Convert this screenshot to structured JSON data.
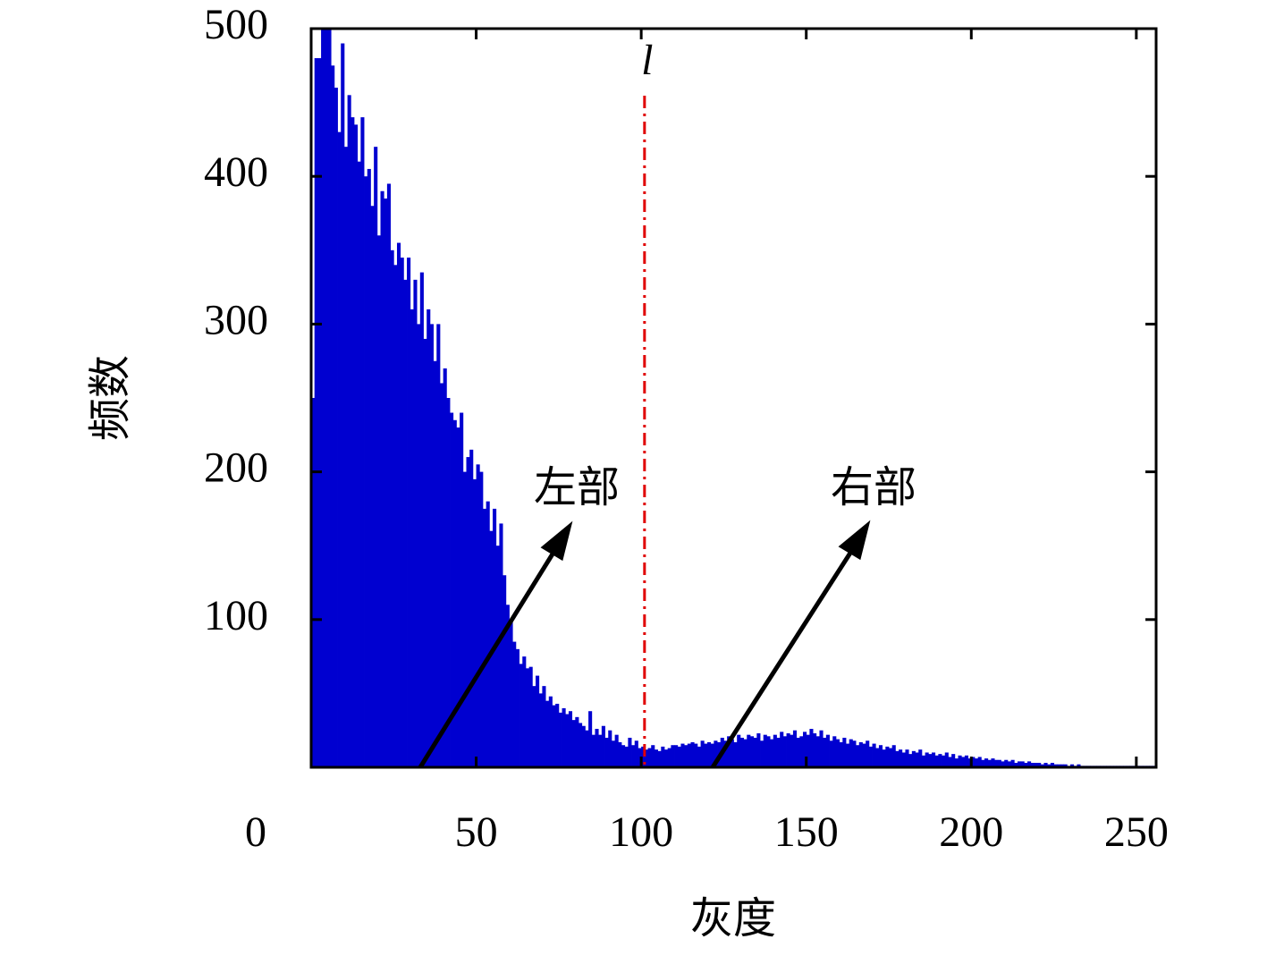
{
  "chart_data": {
    "type": "histogram",
    "xlabel": "灰度",
    "ylabel": "频数",
    "color": "#0000d0",
    "bins": [
      0,
      1,
      2,
      3,
      4,
      5,
      6,
      7,
      8,
      9,
      10,
      11,
      12,
      13,
      14,
      15,
      16,
      17,
      18,
      19,
      20,
      21,
      22,
      23,
      24,
      25,
      26,
      27,
      28,
      29,
      30,
      31,
      32,
      33,
      34,
      35,
      36,
      37,
      38,
      39,
      40,
      41,
      42,
      43,
      44,
      45,
      46,
      47,
      48,
      49,
      50,
      51,
      52,
      53,
      54,
      55,
      56,
      57,
      58,
      59,
      60,
      61,
      62,
      63,
      64,
      65,
      66,
      67,
      68,
      69,
      70,
      71,
      72,
      73,
      74,
      75,
      76,
      77,
      78,
      79,
      80,
      81,
      82,
      83,
      84,
      85,
      86,
      87,
      88,
      89,
      90,
      91,
      92,
      93,
      94,
      95,
      96,
      97,
      98,
      99,
      100,
      101,
      102,
      103,
      104,
      105,
      106,
      107,
      108,
      109,
      110,
      111,
      112,
      113,
      114,
      115,
      116,
      117,
      118,
      119,
      120,
      121,
      122,
      123,
      124,
      125,
      126,
      127,
      128,
      129,
      130,
      131,
      132,
      133,
      134,
      135,
      136,
      137,
      138,
      139,
      140,
      141,
      142,
      143,
      144,
      145,
      146,
      147,
      148,
      149,
      150,
      151,
      152,
      153,
      154,
      155,
      156,
      157,
      158,
      159,
      160,
      161,
      162,
      163,
      164,
      165,
      166,
      167,
      168,
      169,
      170,
      171,
      172,
      173,
      174,
      175,
      176,
      177,
      178,
      179,
      180,
      181,
      182,
      183,
      184,
      185,
      186,
      187,
      188,
      189,
      190,
      191,
      192,
      193,
      194,
      195,
      196,
      197,
      198,
      199,
      200,
      201,
      202,
      203,
      204,
      205,
      206,
      207,
      208,
      209,
      210,
      211,
      212,
      213,
      214,
      215,
      216,
      217,
      218,
      219,
      220,
      221,
      222,
      223,
      224,
      225,
      226,
      227,
      228,
      229,
      230,
      231,
      232,
      233,
      234,
      235,
      236,
      237,
      238,
      239,
      240,
      241,
      242,
      243,
      244,
      245,
      246,
      247,
      248,
      249,
      250,
      251,
      252,
      253,
      254,
      255,
      256
    ],
    "values": [
      250,
      480,
      480,
      500,
      500,
      500,
      475,
      460,
      430,
      490,
      420,
      455,
      440,
      435,
      410,
      440,
      400,
      405,
      380,
      420,
      360,
      390,
      385,
      395,
      350,
      340,
      355,
      345,
      330,
      345,
      310,
      330,
      300,
      335,
      290,
      310,
      300,
      275,
      300,
      260,
      270,
      250,
      240,
      235,
      230,
      240,
      200,
      210,
      215,
      195,
      205,
      200,
      175,
      180,
      160,
      175,
      150,
      165,
      130,
      110,
      100,
      85,
      80,
      70,
      75,
      67,
      68,
      55,
      62,
      50,
      55,
      45,
      48,
      42,
      43,
      37,
      40,
      36,
      38,
      32,
      34,
      30,
      28,
      25,
      38,
      22,
      26,
      22,
      28,
      20,
      25,
      18,
      22,
      17,
      15,
      14,
      20,
      15,
      18,
      13,
      14,
      12,
      13,
      15,
      12,
      11,
      14,
      12,
      13,
      15,
      15,
      14,
      16,
      15,
      16,
      17,
      16,
      14,
      18,
      16,
      17,
      16,
      18,
      17,
      20,
      18,
      21,
      19,
      17,
      22,
      20,
      19,
      22,
      21,
      20,
      23,
      18,
      22,
      21,
      19,
      22,
      20,
      24,
      21,
      23,
      22,
      25,
      20,
      21,
      24,
      22,
      26,
      23,
      21,
      25,
      20,
      22,
      18,
      21,
      19,
      17,
      20,
      16,
      19,
      18,
      15,
      17,
      16,
      18,
      14,
      16,
      13,
      15,
      12,
      14,
      13,
      15,
      11,
      12,
      10,
      12,
      9,
      11,
      10,
      12,
      8,
      10,
      9,
      10,
      8,
      9,
      8,
      10,
      7,
      9,
      6,
      8,
      7,
      8,
      6,
      7,
      6,
      7,
      5,
      6,
      5,
      6,
      5,
      5,
      4,
      5,
      4,
      5,
      3,
      4,
      4,
      3,
      4,
      3,
      3,
      3,
      2,
      3,
      2,
      3,
      2,
      2,
      2,
      2,
      1,
      2,
      1,
      2,
      1,
      1,
      1,
      1,
      1,
      1,
      1,
      1,
      1,
      1,
      1,
      1,
      1,
      1,
      1,
      1,
      1,
      1,
      1,
      1,
      1,
      1,
      1
    ],
    "xlim": [
      0,
      256
    ],
    "ylim": [
      0,
      500
    ],
    "xticks": [
      0,
      50,
      100,
      150,
      200,
      250
    ],
    "yticks": [
      100,
      200,
      300,
      400,
      500
    ],
    "reference_line": {
      "x": 101,
      "label": "l",
      "color": "#e00000"
    },
    "annotations": [
      {
        "text": "左部"
      },
      {
        "text": "右部"
      }
    ]
  }
}
